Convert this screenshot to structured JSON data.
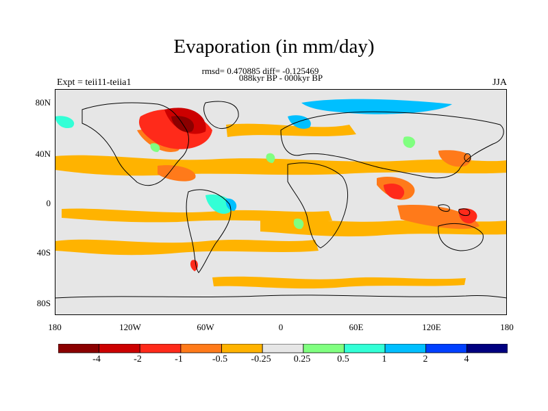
{
  "title": "Evaporation (in mm/day)",
  "stats_line": "rmsd= 0.470885 diff= -0.125469",
  "comparison_line": "088kyr BP - 000kyr BP",
  "left_label": "Expt = teii11-teiia1",
  "right_label": "JJA",
  "axes": {
    "lat_ticks": [
      "80N",
      "40N",
      "0",
      "40S",
      "80S"
    ],
    "lat_values": [
      80,
      40,
      0,
      -40,
      -80
    ],
    "lon_ticks": [
      "180",
      "120W",
      "60W",
      "0",
      "60E",
      "120E",
      "180"
    ],
    "lon_values": [
      -180,
      -120,
      -60,
      0,
      60,
      120,
      180
    ],
    "lon_range": [
      -180,
      180
    ],
    "lat_range": [
      -90,
      90
    ]
  },
  "colorbar": {
    "labels": [
      "-4",
      "-2",
      "-1",
      "-0.5",
      "-0.25",
      "0.25",
      "0.5",
      "1",
      "2",
      "4"
    ],
    "colors": [
      "#8b0000",
      "#cc0000",
      "#ff2a1a",
      "#ff7a1a",
      "#ffb300",
      "#e6e6e6",
      "#80ff80",
      "#33ffd6",
      "#00bfff",
      "#0040ff",
      "#000080"
    ]
  },
  "field_colors": {
    "neutral": "#e6e6e6",
    "land_outline": "#000000"
  }
}
